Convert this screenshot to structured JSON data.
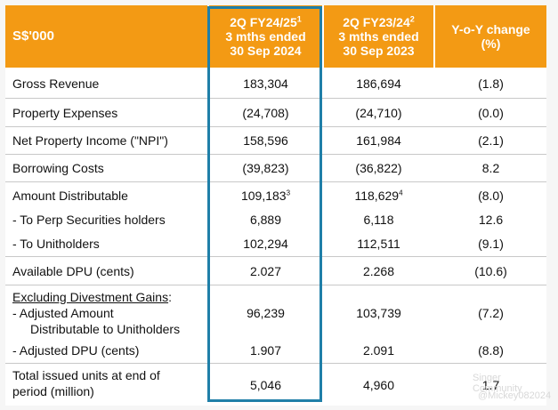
{
  "header": {
    "col0": "S$'000",
    "col1": {
      "line1": "2Q FY24/25",
      "sup": "1",
      "line2": "3 mths ended",
      "line3": "30 Sep 2024"
    },
    "col2": {
      "line1": "2Q FY23/24",
      "sup": "2",
      "line2": "3 mths ended",
      "line3": "30 Sep 2023"
    },
    "col3": {
      "line1": "Y-o-Y change",
      "line2": "(%)"
    }
  },
  "rows": [
    {
      "label": "Gross Revenue",
      "v1": "183,304",
      "v2": "186,694",
      "v3": "(1.8)"
    },
    {
      "label": "Property Expenses",
      "v1": "(24,708)",
      "v2": "(24,710)",
      "v3": "(0.0)"
    },
    {
      "label": "Net Property Income (\"NPI\")",
      "v1": "158,596",
      "v2": "161,984",
      "v3": "(2.1)"
    },
    {
      "label": "Borrowing Costs",
      "v1": "(39,823)",
      "v2": "(36,822)",
      "v3": "8.2"
    },
    {
      "label": "Amount Distributable",
      "v1": "109,183",
      "v1_sup": "3",
      "v2": "118,629",
      "v2_sup": "4",
      "v3": "(8.0)"
    },
    {
      "label": "- To Perp Securities holders",
      "v1": "6,889",
      "v2": "6,118",
      "v3": "12.6"
    },
    {
      "label": "- To Unitholders",
      "v1": "102,294",
      "v2": "112,511",
      "v3": "(9.1)"
    },
    {
      "label": "Available DPU (cents)",
      "v1": "2.027",
      "v2": "2.268",
      "v3": "(10.6)"
    }
  ],
  "excl": {
    "title": "Excluding Divestment Gains",
    "colon": ":",
    "adj_amount_l1": "- Adjusted Amount",
    "adj_amount_l2": "Distributable to Unitholders",
    "adj_amount": {
      "v1": "96,239",
      "v2": "103,739",
      "v3": "(7.2)"
    },
    "adj_dpu_label": "- Adjusted DPU (cents)",
    "adj_dpu": {
      "v1": "1.907",
      "v2": "2.091",
      "v3": "(8.8)"
    }
  },
  "total": {
    "label_l1": "Total issued units at end of",
    "label_l2": "period (million)",
    "v1": "5,046",
    "v2": "4,960",
    "v3": "1.7"
  },
  "watermark": {
    "line1": "Singer Community",
    "line2": "@Mickey082024"
  }
}
